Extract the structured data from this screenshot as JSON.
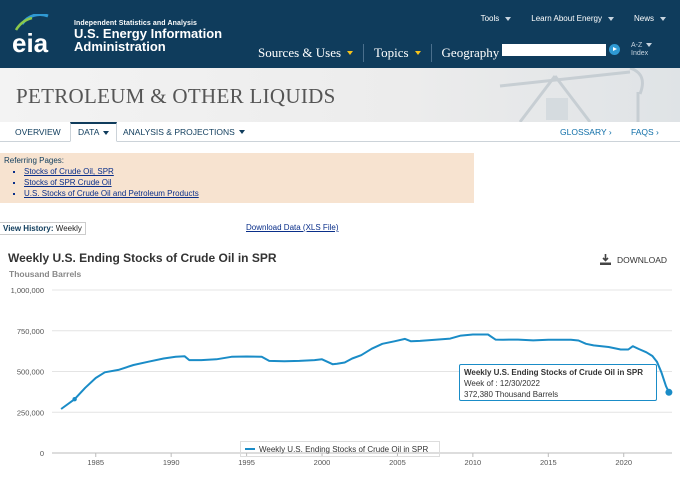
{
  "header": {
    "logo_text": "eia",
    "org_small": "Independent Statistics and Analysis",
    "org_line1": "U.S. Energy Information",
    "org_line2": "Administration",
    "nav": [
      "Sources & Uses",
      "Topics",
      "Geography"
    ],
    "util": [
      "Tools",
      "Learn About Energy",
      "News"
    ],
    "az_line1": "A-Z",
    "az_line2": "Index",
    "search_placeholder": ""
  },
  "banner": {
    "title": "PETROLEUM & OTHER LIQUIDS"
  },
  "subnav": {
    "overview": "OVERVIEW",
    "data": "DATA",
    "analysis": "ANALYSIS & PROJECTIONS",
    "glossary": "GLOSSARY ›",
    "faqs": "FAQS ›"
  },
  "referring": {
    "title": "Referring Pages:",
    "links": [
      "Stocks of Crude Oil, SPR",
      "Stocks of SPR Crude Oil",
      "U.S. Stocks of Crude Oil and Petroleum Products"
    ]
  },
  "history": {
    "label": "View History:",
    "value": "Weekly",
    "download": "Download Data (XLS File)"
  },
  "chart_header": {
    "download": "DOWNLOAD"
  },
  "tooltip": {
    "title": "Weekly U.S. Ending Stocks of Crude Oil in SPR",
    "week": "Week of : 12/30/2022",
    "value": "372,380 Thousand Barrels"
  },
  "colors": {
    "nav_bg": "#0f3c5c",
    "accent": "#f5c21b",
    "series": "#1a8cc7",
    "ref_bg": "#f7e3d0"
  },
  "chart_data": {
    "type": "line",
    "title": "Weekly U.S. Ending Stocks of Crude Oil in SPR",
    "ylabel": "Thousand Barrels",
    "xlabel": "",
    "ylim": [
      0,
      1000000
    ],
    "xlim": [
      1982.1,
      2023.2
    ],
    "yticks": [
      0,
      250000,
      500000,
      750000,
      1000000
    ],
    "ytick_labels": [
      "0",
      "250,000",
      "500,000",
      "750,000",
      "1,000,000"
    ],
    "xticks": [
      1985,
      1990,
      1995,
      2000,
      2005,
      2010,
      2015,
      2020
    ],
    "legend": "Weekly U.S. Ending Stocks of Crude Oil in SPR",
    "series": [
      {
        "name": "Weekly U.S. Ending Stocks of Crude Oil in SPR",
        "x": [
          1982.7,
          1983.6,
          1984.3,
          1985.0,
          1985.6,
          1986.5,
          1987.5,
          1988.5,
          1989.5,
          1990.3,
          1990.9,
          1991.2,
          1992.0,
          1993.0,
          1994.0,
          1995.0,
          1996.0,
          1996.5,
          1997.5,
          1998.5,
          1999.5,
          2000.0,
          2000.7,
          2001.0,
          2001.5,
          2002.0,
          2002.6,
          2003.3,
          2004.0,
          2004.8,
          2005.5,
          2005.9,
          2006.5,
          2007.5,
          2008.5,
          2009.2,
          2010.0,
          2011.0,
          2011.5,
          2012.0,
          2013.0,
          2014.0,
          2015.0,
          2016.0,
          2016.5,
          2017.0,
          2017.5,
          2018.0,
          2019.0,
          2019.8,
          2020.3,
          2020.6,
          2021.0,
          2021.5,
          2021.9,
          2022.2,
          2022.5,
          2022.8,
          2022.995
        ],
        "values": [
          270000,
          330000,
          400000,
          460000,
          495000,
          510000,
          540000,
          560000,
          580000,
          590000,
          593000,
          570000,
          570000,
          575000,
          590000,
          592000,
          590000,
          565000,
          563000,
          565000,
          570000,
          575000,
          545000,
          548000,
          555000,
          580000,
          600000,
          640000,
          670000,
          685000,
          700000,
          685000,
          688000,
          695000,
          702000,
          720000,
          727000,
          727000,
          696000,
          695000,
          696000,
          691000,
          695000,
          695000,
          695000,
          690000,
          670000,
          660000,
          650000,
          635000,
          635000,
          655000,
          638000,
          618000,
          595000,
          560000,
          495000,
          410000,
          372380
        ],
        "marker_points": [
          [
            1983.6,
            330000
          ],
          [
            2022.995,
            372380
          ]
        ]
      }
    ]
  }
}
